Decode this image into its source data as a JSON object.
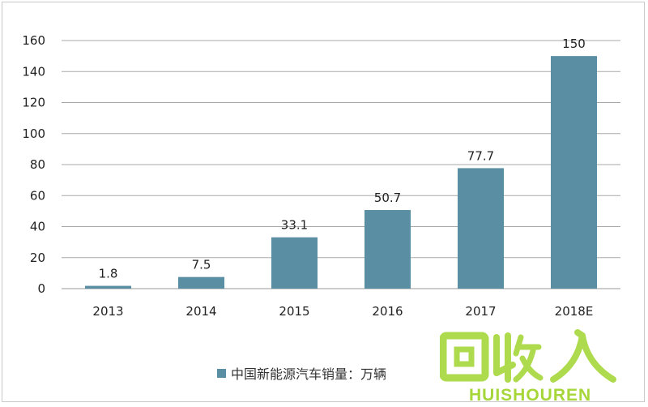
{
  "chart_data": {
    "type": "bar",
    "categories": [
      "2013",
      "2014",
      "2015",
      "2016",
      "2017",
      "2018E"
    ],
    "values": [
      1.8,
      7.5,
      33.1,
      50.7,
      77.7,
      150
    ],
    "data_labels": [
      "1.8",
      "7.5",
      "33.1",
      "50.7",
      "77.7",
      "150"
    ],
    "yticks": [
      "0",
      "20",
      "40",
      "60",
      "80",
      "100",
      "120",
      "140",
      "160"
    ],
    "ylim": [
      0,
      160
    ],
    "grid": true,
    "legend": "bottom",
    "series": [
      {
        "name": "中国新能源汽车销量：万辆",
        "values": [
          1.8,
          7.5,
          33.1,
          50.7,
          77.7,
          150
        ]
      }
    ],
    "bar_color": "#5a8ea3"
  },
  "watermark": {
    "glyphs": "回收",
    "brand": "HUISHOUREN",
    "color": "#a6d63a"
  }
}
